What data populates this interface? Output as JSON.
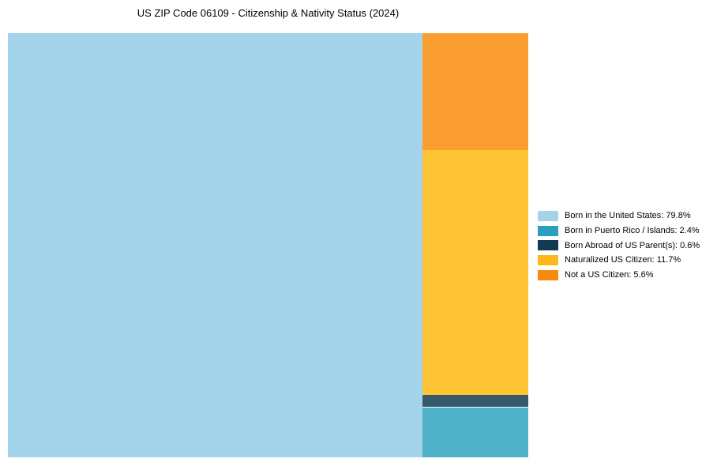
{
  "chart_data": {
    "type": "treemap",
    "title": "US ZIP Code 06109 - Citizenship & Nativity Status (2024)",
    "unit": "%",
    "segments": [
      {
        "name": "Born in the United States",
        "value": 79.8,
        "block_color": "#a4d4ec",
        "legend_color": "#a6d3e9",
        "legend_label": "Born in the United States: 79.8%"
      },
      {
        "name": "Born in Puerto Rico / Islands",
        "value": 2.4,
        "block_color": "#4fb2c8",
        "legend_color": "#2b9fbd",
        "legend_label": "Born in Puerto Rico / Islands: 2.4%"
      },
      {
        "name": "Born Abroad of US Parent(s)",
        "value": 0.6,
        "block_color": "#36596d",
        "legend_color": "#123a50",
        "legend_label": "Born Abroad of US Parent(s): 0.6%"
      },
      {
        "name": "Naturalized US Citizen",
        "value": 11.7,
        "block_color": "#fec433",
        "legend_color": "#fdb91c",
        "legend_label": "Naturalized US Citizen: 11.7%"
      },
      {
        "name": "Not a US Citizen",
        "value": 5.6,
        "block_color": "#fb9e32",
        "legend_color": "#f8890e",
        "legend_label": "Not a US Citizen: 5.6%"
      }
    ],
    "layout_hint": {
      "root_block": "left-full-height",
      "column_order_top_to_bottom": [
        "Not a US Citizen",
        "Naturalized US Citizen",
        "Born Abroad of US Parent(s)",
        "Born in Puerto Rico / Islands"
      ],
      "legend_position": "right-middle",
      "background": "#ffffff",
      "grid": false
    }
  }
}
